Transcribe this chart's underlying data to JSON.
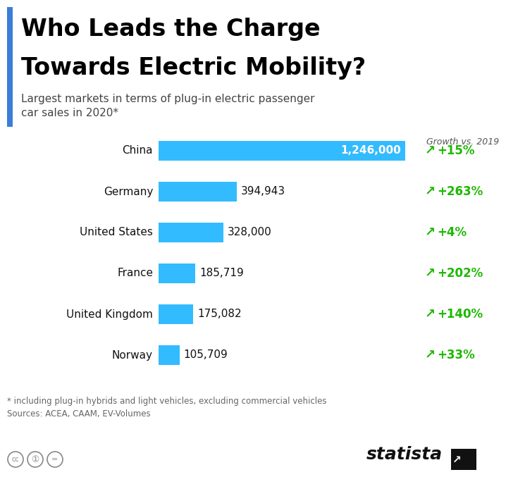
{
  "title_line1": "Who Leads the Charge",
  "title_line2": "Towards Electric Mobility?",
  "subtitle": "Largest markets in terms of plug-in electric passenger\ncar sales in 2020*",
  "footnote": "* including plug-in hybrids and light vehicles, excluding commercial vehicles\nSources: ACEA, CAAM, EV-Volumes",
  "growth_header": "Growth vs. 2019",
  "countries": [
    "China",
    "Germany",
    "United States",
    "France",
    "United Kingdom",
    "Norway"
  ],
  "values": [
    1246000,
    394943,
    328000,
    185719,
    175082,
    105709
  ],
  "value_labels": [
    "1,246,000",
    "394,943",
    "328,000",
    "185,719",
    "175,082",
    "105,709"
  ],
  "growth": [
    "+15%",
    "+263%",
    "+4%",
    "+202%",
    "+140%",
    "+33%"
  ],
  "value_inside": [
    true,
    false,
    false,
    false,
    false,
    false
  ],
  "bar_color": "#33BBFF",
  "growth_color": "#1DB800",
  "title_color": "#000000",
  "subtitle_color": "#444444",
  "accent_color": "#3B7DD8",
  "bg_color": "#FFFFFF",
  "footnote_color": "#666666"
}
